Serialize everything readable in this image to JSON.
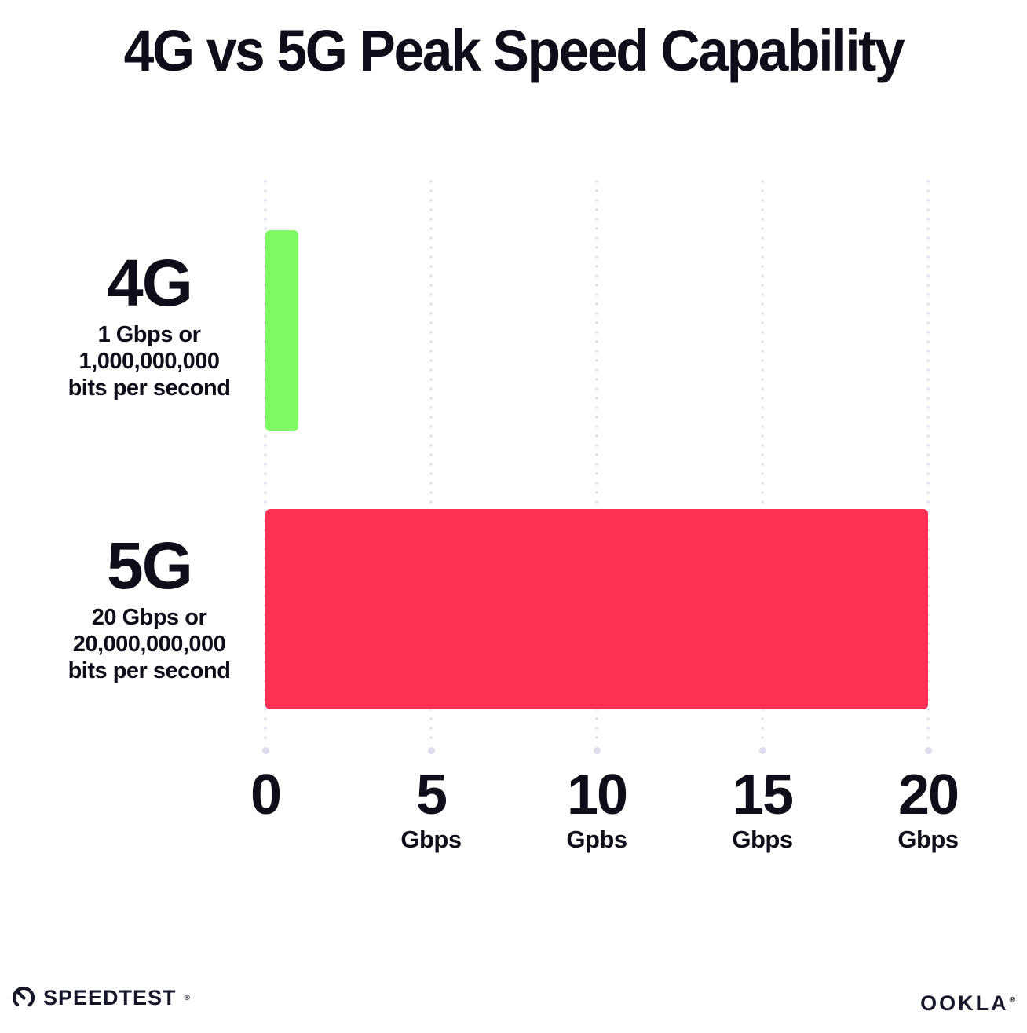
{
  "chart_data": {
    "type": "bar",
    "orientation": "horizontal",
    "title": "4G vs 5G Peak Speed Capability",
    "categories": [
      "4G",
      "5G"
    ],
    "values": [
      1,
      20
    ],
    "xlim": [
      0,
      20
    ],
    "bar_colors": [
      "#7efb63",
      "#fd3254"
    ],
    "grid": "vertical-dotted",
    "legend": "none",
    "rows": [
      {
        "name": "4G",
        "value_gbps": 1,
        "description_lines": [
          "1 Gbps or",
          "1,000,000,000",
          "bits per second"
        ]
      },
      {
        "name": "5G",
        "value_gbps": 20,
        "description_lines": [
          "20 Gbps or",
          "20,000,000,000",
          "bits per second"
        ]
      }
    ],
    "x_ticks": [
      {
        "value": 0,
        "label": "0",
        "unit": ""
      },
      {
        "value": 5,
        "label": "5",
        "unit": "Gbps"
      },
      {
        "value": 10,
        "label": "10",
        "unit": "Gpbs"
      },
      {
        "value": 15,
        "label": "15",
        "unit": "Gbps"
      },
      {
        "value": 20,
        "label": "20",
        "unit": "Gbps"
      }
    ]
  },
  "footer": {
    "speedtest": {
      "label": "SPEEDTEST",
      "trademark": "®"
    },
    "ookla": {
      "label": "OOKLA",
      "trademark": "®"
    }
  },
  "colors": {
    "bar_4g": "#7efb63",
    "bar_5g": "#fd3254",
    "grid_dot": "#e4e4ef",
    "grid_end_dot": "#dddded",
    "text": "#0d0e1a",
    "background": "#ffffff"
  }
}
